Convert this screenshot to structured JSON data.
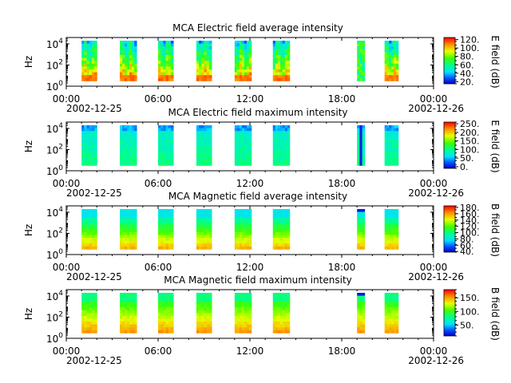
{
  "chart_data": [
    {
      "type": "heatmap",
      "title": "MCA  Electric field average intensity",
      "ylabel": "Hz",
      "xticks": [
        "00:00",
        "06:00",
        "12:00",
        "18:00",
        "00:00"
      ],
      "xdates": [
        "2002-12-25",
        "2002-12-26"
      ],
      "xlim_hours": [
        0,
        24
      ],
      "yticks": [
        "10^0",
        "10^2",
        "10^4"
      ],
      "ylim_log10": [
        0,
        4.6
      ],
      "colorbar_label": "E field (dB)",
      "colorbar_ticks": [
        "20.",
        "40.",
        "60.",
        "80.",
        "100.",
        "120."
      ],
      "colorbar_range": [
        15,
        125
      ],
      "profile": "eavg",
      "segments": [
        {
          "start_h": 1.0,
          "end_h": 2.0,
          "f_low_log10": 0.5,
          "f_high_log10": 4.3
        },
        {
          "start_h": 3.5,
          "end_h": 4.6,
          "f_low_log10": 0.5,
          "f_high_log10": 4.3
        },
        {
          "start_h": 6.0,
          "end_h": 7.0,
          "f_low_log10": 0.5,
          "f_high_log10": 4.3
        },
        {
          "start_h": 8.5,
          "end_h": 9.5,
          "f_low_log10": 0.5,
          "f_high_log10": 4.3
        },
        {
          "start_h": 11.0,
          "end_h": 12.1,
          "f_low_log10": 0.5,
          "f_high_log10": 4.3
        },
        {
          "start_h": 13.5,
          "end_h": 14.6,
          "f_low_log10": 0.5,
          "f_high_log10": 4.3
        },
        {
          "start_h": 19.0,
          "end_h": 19.5,
          "f_low_log10": 0.5,
          "f_high_log10": 4.3
        },
        {
          "start_h": 20.8,
          "end_h": 21.7,
          "f_low_log10": 0.5,
          "f_high_log10": 4.3
        }
      ]
    },
    {
      "type": "heatmap",
      "title": "MCA  Electric field maximum intensity",
      "ylabel": "Hz",
      "xticks": [
        "00:00",
        "06:00",
        "12:00",
        "18:00",
        "00:00"
      ],
      "xdates": [
        "2002-12-25",
        "2002-12-26"
      ],
      "xlim_hours": [
        0,
        24
      ],
      "yticks": [
        "10^0",
        "10^2",
        "10^4"
      ],
      "ylim_log10": [
        0,
        4.6
      ],
      "colorbar_label": "E field (dB)",
      "colorbar_ticks": [
        "0.",
        "50.",
        "100.",
        "150.",
        "200.",
        "250."
      ],
      "colorbar_range": [
        -10,
        260
      ],
      "profile": "emax",
      "segments": [
        {
          "start_h": 1.0,
          "end_h": 2.0,
          "f_low_log10": 0.5,
          "f_high_log10": 4.3
        },
        {
          "start_h": 3.5,
          "end_h": 4.6,
          "f_low_log10": 0.5,
          "f_high_log10": 4.3
        },
        {
          "start_h": 6.0,
          "end_h": 7.0,
          "f_low_log10": 0.5,
          "f_high_log10": 4.3
        },
        {
          "start_h": 8.5,
          "end_h": 9.5,
          "f_low_log10": 0.5,
          "f_high_log10": 4.3
        },
        {
          "start_h": 11.0,
          "end_h": 12.1,
          "f_low_log10": 0.5,
          "f_high_log10": 4.3
        },
        {
          "start_h": 13.5,
          "end_h": 14.6,
          "f_low_log10": 0.5,
          "f_high_log10": 4.3
        },
        {
          "start_h": 19.0,
          "end_h": 19.5,
          "f_low_log10": 0.5,
          "f_high_log10": 4.3
        },
        {
          "start_h": 20.8,
          "end_h": 21.7,
          "f_low_log10": 0.5,
          "f_high_log10": 4.3
        }
      ]
    },
    {
      "type": "heatmap",
      "title": "MCA  Magnetic field average intensity",
      "ylabel": "Hz",
      "xticks": [
        "00:00",
        "06:00",
        "12:00",
        "18:00",
        "00:00"
      ],
      "xdates": [
        "2002-12-25",
        "2002-12-26"
      ],
      "xlim_hours": [
        0,
        24
      ],
      "yticks": [
        "10^0",
        "10^2",
        "10^4"
      ],
      "ylim_log10": [
        0,
        4.6
      ],
      "colorbar_label": "B field (dB)",
      "colorbar_ticks": [
        "40.",
        "60.",
        "80.",
        "100.",
        "120.",
        "140.",
        "160.",
        "180."
      ],
      "colorbar_range": [
        38,
        185
      ],
      "profile": "bavg",
      "segments": [
        {
          "start_h": 1.0,
          "end_h": 2.0,
          "f_low_log10": 0.5,
          "f_high_log10": 4.3
        },
        {
          "start_h": 3.5,
          "end_h": 4.6,
          "f_low_log10": 0.5,
          "f_high_log10": 4.3
        },
        {
          "start_h": 6.0,
          "end_h": 7.0,
          "f_low_log10": 0.5,
          "f_high_log10": 4.3
        },
        {
          "start_h": 8.5,
          "end_h": 9.5,
          "f_low_log10": 0.5,
          "f_high_log10": 4.3
        },
        {
          "start_h": 11.0,
          "end_h": 12.1,
          "f_low_log10": 0.5,
          "f_high_log10": 4.3
        },
        {
          "start_h": 13.5,
          "end_h": 14.6,
          "f_low_log10": 0.5,
          "f_high_log10": 4.3
        },
        {
          "start_h": 19.0,
          "end_h": 19.5,
          "f_low_log10": 0.5,
          "f_high_log10": 4.3
        },
        {
          "start_h": 20.8,
          "end_h": 21.7,
          "f_low_log10": 0.5,
          "f_high_log10": 4.3
        }
      ]
    },
    {
      "type": "heatmap",
      "title": "MCA  Magnetic field maximum intensity",
      "ylabel": "Hz",
      "xticks": [
        "00:00",
        "06:00",
        "12:00",
        "18:00",
        "00:00"
      ],
      "xdates": [
        "2002-12-25",
        "2002-12-26"
      ],
      "xlim_hours": [
        0,
        24
      ],
      "yticks": [
        "10^0",
        "10^2",
        "10^4"
      ],
      "ylim_log10": [
        0,
        4.6
      ],
      "colorbar_label": "B field (dB)",
      "colorbar_ticks": [
        "50.",
        "100.",
        "150."
      ],
      "colorbar_range": [
        10,
        180
      ],
      "profile": "bmax",
      "segments": [
        {
          "start_h": 1.0,
          "end_h": 2.0,
          "f_low_log10": 0.5,
          "f_high_log10": 4.3
        },
        {
          "start_h": 3.5,
          "end_h": 4.6,
          "f_low_log10": 0.5,
          "f_high_log10": 4.3
        },
        {
          "start_h": 6.0,
          "end_h": 7.0,
          "f_low_log10": 0.5,
          "f_high_log10": 4.3
        },
        {
          "start_h": 8.5,
          "end_h": 9.5,
          "f_low_log10": 0.5,
          "f_high_log10": 4.3
        },
        {
          "start_h": 11.0,
          "end_h": 12.1,
          "f_low_log10": 0.5,
          "f_high_log10": 4.3
        },
        {
          "start_h": 13.5,
          "end_h": 14.6,
          "f_low_log10": 0.5,
          "f_high_log10": 4.3
        },
        {
          "start_h": 19.0,
          "end_h": 19.5,
          "f_low_log10": 0.5,
          "f_high_log10": 4.3
        },
        {
          "start_h": 20.8,
          "end_h": 21.7,
          "f_low_log10": 0.5,
          "f_high_log10": 4.3
        }
      ]
    }
  ]
}
